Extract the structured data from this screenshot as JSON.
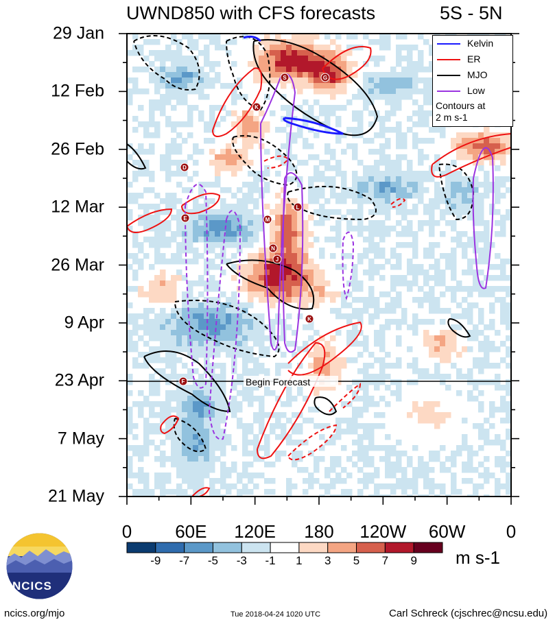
{
  "header": {
    "title": "UWND850 with CFS forecasts",
    "lat_range": "5S - 5N"
  },
  "legend": {
    "items": [
      {
        "label": "Kelvin",
        "color": "#1a1aff"
      },
      {
        "label": "ER",
        "color": "#ee1111"
      },
      {
        "label": "MJO",
        "color": "#000000"
      },
      {
        "label": "Low",
        "color": "#9a33e0"
      }
    ],
    "note_line1": "Contours at",
    "note_line2": "2 m s-1"
  },
  "forecast_label": "Begin Forecast",
  "colorbar": {
    "units": "m s-1",
    "labels": [
      "-9",
      "-7",
      "-5",
      "-3",
      "-1",
      "1",
      "3",
      "5",
      "7",
      "9"
    ],
    "colors": [
      "#0b3b70",
      "#2f6cae",
      "#5b98c8",
      "#92c2de",
      "#cce4f0",
      "#ffffff",
      "#fdd9c4",
      "#f4a583",
      "#d6604d",
      "#b2182b",
      "#67001f"
    ]
  },
  "footer": {
    "left": "ncics.org/mjo",
    "middle": "Tue 2018-04-24 1020 UTC",
    "right": "Carl Schreck (cjschrec@ncsu.edu)"
  },
  "logo_text": "NCICS",
  "chart_data": {
    "type": "heatmap",
    "title": "UWND850 with CFS forecasts",
    "subtitle": "5S - 5N",
    "x_tick_labels": [
      "0",
      "60E",
      "120E",
      "180",
      "120W",
      "60W",
      "0"
    ],
    "x_range_deg_east": [
      0,
      360
    ],
    "y_tick_labels": [
      "29 Jan",
      "12 Feb",
      "26 Feb",
      "12 Mar",
      "26 Mar",
      "9 Apr",
      "23 Apr",
      "7 May",
      "21 May"
    ],
    "y_range": [
      "29 Jan",
      "21 May"
    ],
    "forecast_start": "23 Apr",
    "value_units": "m s-1",
    "contour_interval": "2 m s-1",
    "series": [
      {
        "name": "Kelvin",
        "color": "#1a1aff"
      },
      {
        "name": "ER",
        "color": "#ee1111"
      },
      {
        "name": "MJO",
        "color": "#000000"
      },
      {
        "name": "Low",
        "color": "#9a33e0"
      }
    ],
    "tc_markers": [
      "S",
      "G",
      "K",
      "D",
      "E",
      "L",
      "M",
      "N",
      "J",
      "K",
      "F"
    ],
    "legend_position": "top-right"
  }
}
